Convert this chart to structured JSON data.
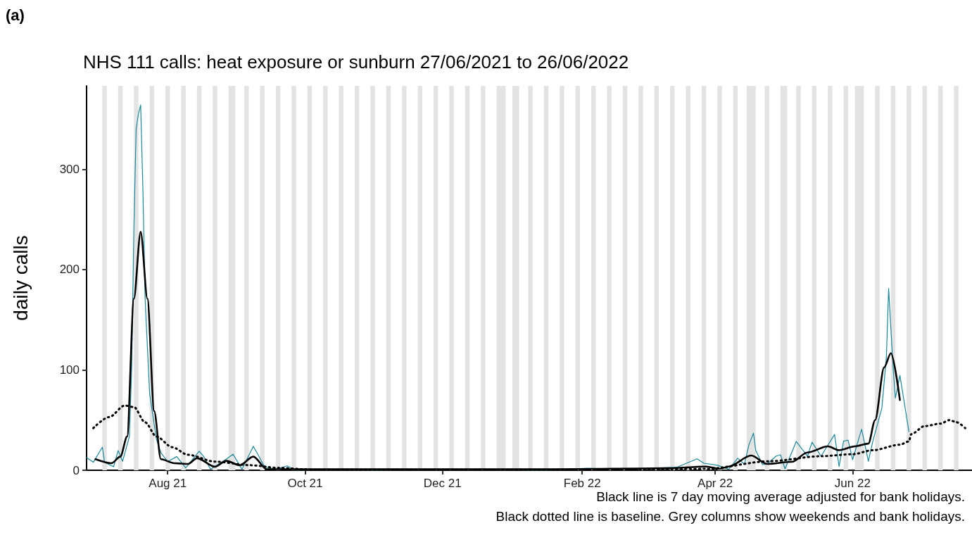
{
  "chart_data": {
    "type": "line",
    "title": "NHS 111 calls: heat exposure or sunburn 27/06/2021 to 26/06/2022",
    "ylabel": "daily calls",
    "annotations": [
      "(a)",
      "Black line is 7 day moving average adjusted for bank holidays.",
      "Black dotted line is baseline. Grey columns show weekends and bank holidays."
    ],
    "xlim": [
      "2021-06-26",
      "2022-07-24"
    ],
    "xticks": [
      {
        "value": "2021-08-01",
        "label": "Aug 21"
      },
      {
        "value": "2021-10-01",
        "label": "Oct 21"
      },
      {
        "value": "2021-12-01",
        "label": "Dec 21"
      },
      {
        "value": "2022-02-01",
        "label": "Feb 22"
      },
      {
        "value": "2022-04-01",
        "label": "Apr 22"
      },
      {
        "value": "2022-06-01",
        "label": "Jun 22"
      }
    ],
    "ylim": [
      0,
      383
    ],
    "yticks": [
      0,
      100,
      200,
      300
    ],
    "grid": false,
    "marker": "none",
    "series": [
      {
        "color": "#19889e",
        "line_style": "solid",
        "x": [
          "2021-06-26",
          "2021-06-29",
          "2021-07-03",
          "2021-07-04",
          "2021-07-08",
          "2021-07-10",
          "2021-07-12",
          "2021-07-15",
          "2021-07-16",
          "2021-07-17",
          "2021-07-18",
          "2021-07-19",
          "2021-07-20",
          "2021-07-21",
          "2021-07-22",
          "2021-07-24",
          "2021-07-27",
          "2021-07-29",
          "2021-08-01",
          "2021-08-05",
          "2021-08-09",
          "2021-08-15",
          "2021-08-17",
          "2021-08-20",
          "2021-08-27",
          "2021-08-30",
          "2021-09-03",
          "2021-09-08",
          "2021-09-10",
          "2021-09-13",
          "2021-09-18",
          "2021-09-23",
          "2021-09-27",
          "2021-10-10",
          "2021-11-01",
          "2021-11-20",
          "2021-12-10",
          "2021-12-25",
          "2022-01-15",
          "2022-02-03",
          "2022-02-20",
          "2022-03-05",
          "2022-03-15",
          "2022-03-24",
          "2022-03-27",
          "2022-04-02",
          "2022-04-07",
          "2022-04-11",
          "2022-04-14",
          "2022-04-16",
          "2022-04-18",
          "2022-04-19",
          "2022-04-22",
          "2022-04-24",
          "2022-04-28",
          "2022-04-30",
          "2022-05-02",
          "2022-05-07",
          "2022-05-12",
          "2022-05-14",
          "2022-05-18",
          "2022-05-24",
          "2022-05-26",
          "2022-05-28",
          "2022-05-30",
          "2022-06-01",
          "2022-06-05",
          "2022-06-08",
          "2022-06-10",
          "2022-06-14",
          "2022-06-16",
          "2022-06-17",
          "2022-06-19",
          "2022-06-20",
          "2022-06-22",
          "2022-06-26"
        ],
        "values": [
          12.6,
          8,
          23,
          8,
          3.5,
          19.6,
          9,
          33.6,
          100,
          240,
          340,
          355,
          364,
          280,
          170,
          76,
          31,
          17.5,
          8.6,
          13.6,
          2.4,
          19,
          13.6,
          1,
          11,
          16,
          1,
          23.8,
          16,
          3.5,
          1,
          4.4,
          0,
          1,
          0,
          1,
          1,
          1,
          0,
          2,
          1,
          2,
          3,
          11.4,
          7,
          5,
          1,
          12,
          6,
          25.5,
          37,
          20,
          5.6,
          6,
          14,
          15.4,
          1.4,
          28.7,
          14,
          28,
          14,
          35.7,
          3.7,
          29,
          30,
          10.5,
          41,
          9,
          29,
          62,
          113,
          181,
          101.6,
          72,
          94.6,
          38.5
        ]
      },
      {
        "color": "#000000",
        "line_style": "solid",
        "x": [
          "2021-06-30",
          "2021-07-07",
          "2021-07-11",
          "2021-07-14",
          "2021-07-17",
          "2021-07-20",
          "2021-07-23",
          "2021-07-26",
          "2021-07-29",
          "2021-08-04",
          "2021-08-10",
          "2021-08-14",
          "2021-08-22",
          "2021-08-27",
          "2021-09-02",
          "2021-09-08",
          "2021-09-14",
          "2021-09-25",
          "2021-10-20",
          "2021-11-20",
          "2021-12-20",
          "2022-01-20",
          "2022-02-15",
          "2022-03-10",
          "2022-03-28",
          "2022-04-03",
          "2022-04-07",
          "2022-04-17",
          "2022-04-24",
          "2022-05-05",
          "2022-05-12",
          "2022-05-21",
          "2022-05-26",
          "2022-06-02",
          "2022-06-08",
          "2022-06-11",
          "2022-06-15",
          "2022-06-18",
          "2022-06-22"
        ],
        "values": [
          11,
          7,
          13.6,
          33.6,
          171,
          237.6,
          171,
          59,
          11,
          7,
          6.3,
          12,
          3.5,
          9.4,
          5,
          13.6,
          1,
          1,
          1,
          1,
          1,
          1,
          1.5,
          2,
          3.7,
          1.4,
          3.7,
          14.7,
          6.3,
          8.4,
          17.7,
          23.8,
          20,
          23.8,
          26.6,
          50,
          102.5,
          116.6,
          70
        ]
      },
      {
        "color": "#000000",
        "line_style": "dotted",
        "x": [
          "2021-06-29",
          "2021-07-06",
          "2021-07-13",
          "2021-07-17",
          "2021-07-22",
          "2021-07-27",
          "2021-08-03",
          "2021-08-10",
          "2021-08-22",
          "2021-09-07",
          "2021-09-19",
          "2021-10-05",
          "2021-11-01",
          "2021-12-01",
          "2022-01-01",
          "2022-02-01",
          "2022-03-01",
          "2022-03-28",
          "2022-04-25",
          "2022-05-18",
          "2022-06-01",
          "2022-06-10",
          "2022-06-22",
          "2022-06-26",
          "2022-06-27",
          "2022-07-03",
          "2022-07-10",
          "2022-07-14",
          "2022-07-17",
          "2022-07-21"
        ],
        "values": [
          42,
          53,
          64.5,
          63,
          47.7,
          33.6,
          23,
          15.4,
          8.6,
          5,
          2.4,
          0.5,
          0.5,
          0.5,
          0.5,
          0.5,
          0.5,
          1.4,
          9,
          14,
          16,
          20,
          25.5,
          28.7,
          36,
          44,
          46.5,
          50,
          48,
          42
        ]
      }
    ],
    "bands": [
      {
        "axis": "x",
        "from": "2021-07-03",
        "to": "2021-07-05",
        "color": "#e3e3e3"
      },
      {
        "axis": "x",
        "from": "2021-07-10",
        "to": "2021-07-12",
        "color": "#e3e3e3"
      },
      {
        "axis": "x",
        "from": "2021-07-17",
        "to": "2021-07-19",
        "color": "#e3e3e3"
      },
      {
        "axis": "x",
        "from": "2021-07-24",
        "to": "2021-07-26",
        "color": "#e3e3e3"
      },
      {
        "axis": "x",
        "from": "2021-07-31",
        "to": "2021-08-02",
        "color": "#e3e3e3"
      },
      {
        "axis": "x",
        "from": "2021-08-07",
        "to": "2021-08-09",
        "color": "#e3e3e3"
      },
      {
        "axis": "x",
        "from": "2021-08-14",
        "to": "2021-08-16",
        "color": "#e3e3e3"
      },
      {
        "axis": "x",
        "from": "2021-08-21",
        "to": "2021-08-23",
        "color": "#e3e3e3"
      },
      {
        "axis": "x",
        "from": "2021-08-28",
        "to": "2021-08-31",
        "color": "#e3e3e3"
      },
      {
        "axis": "x",
        "from": "2021-09-04",
        "to": "2021-09-06",
        "color": "#e3e3e3"
      },
      {
        "axis": "x",
        "from": "2021-09-11",
        "to": "2021-09-13",
        "color": "#e3e3e3"
      },
      {
        "axis": "x",
        "from": "2021-09-18",
        "to": "2021-09-20",
        "color": "#e3e3e3"
      },
      {
        "axis": "x",
        "from": "2021-09-25",
        "to": "2021-09-27",
        "color": "#e3e3e3"
      },
      {
        "axis": "x",
        "from": "2021-10-02",
        "to": "2021-10-04",
        "color": "#e3e3e3"
      },
      {
        "axis": "x",
        "from": "2021-10-09",
        "to": "2021-10-11",
        "color": "#e3e3e3"
      },
      {
        "axis": "x",
        "from": "2021-10-16",
        "to": "2021-10-18",
        "color": "#e3e3e3"
      },
      {
        "axis": "x",
        "from": "2021-10-23",
        "to": "2021-10-25",
        "color": "#e3e3e3"
      },
      {
        "axis": "x",
        "from": "2021-10-30",
        "to": "2021-11-01",
        "color": "#e3e3e3"
      },
      {
        "axis": "x",
        "from": "2021-11-06",
        "to": "2021-11-08",
        "color": "#e3e3e3"
      },
      {
        "axis": "x",
        "from": "2021-11-13",
        "to": "2021-11-15",
        "color": "#e3e3e3"
      },
      {
        "axis": "x",
        "from": "2021-11-20",
        "to": "2021-11-22",
        "color": "#e3e3e3"
      },
      {
        "axis": "x",
        "from": "2021-11-27",
        "to": "2021-11-29",
        "color": "#e3e3e3"
      },
      {
        "axis": "x",
        "from": "2021-12-04",
        "to": "2021-12-06",
        "color": "#e3e3e3"
      },
      {
        "axis": "x",
        "from": "2021-12-11",
        "to": "2021-12-13",
        "color": "#e3e3e3"
      },
      {
        "axis": "x",
        "from": "2021-12-18",
        "to": "2021-12-20",
        "color": "#e3e3e3"
      },
      {
        "axis": "x",
        "from": "2021-12-25",
        "to": "2021-12-29",
        "color": "#e3e3e3"
      },
      {
        "axis": "x",
        "from": "2022-01-01",
        "to": "2022-01-04",
        "color": "#e3e3e3"
      },
      {
        "axis": "x",
        "from": "2022-01-08",
        "to": "2022-01-10",
        "color": "#e3e3e3"
      },
      {
        "axis": "x",
        "from": "2022-01-15",
        "to": "2022-01-17",
        "color": "#e3e3e3"
      },
      {
        "axis": "x",
        "from": "2022-01-22",
        "to": "2022-01-24",
        "color": "#e3e3e3"
      },
      {
        "axis": "x",
        "from": "2022-01-29",
        "to": "2022-01-31",
        "color": "#e3e3e3"
      },
      {
        "axis": "x",
        "from": "2022-02-05",
        "to": "2022-02-07",
        "color": "#e3e3e3"
      },
      {
        "axis": "x",
        "from": "2022-02-12",
        "to": "2022-02-14",
        "color": "#e3e3e3"
      },
      {
        "axis": "x",
        "from": "2022-02-19",
        "to": "2022-02-21",
        "color": "#e3e3e3"
      },
      {
        "axis": "x",
        "from": "2022-02-26",
        "to": "2022-02-28",
        "color": "#e3e3e3"
      },
      {
        "axis": "x",
        "from": "2022-03-05",
        "to": "2022-03-07",
        "color": "#e3e3e3"
      },
      {
        "axis": "x",
        "from": "2022-03-12",
        "to": "2022-03-14",
        "color": "#e3e3e3"
      },
      {
        "axis": "x",
        "from": "2022-03-19",
        "to": "2022-03-21",
        "color": "#e3e3e3"
      },
      {
        "axis": "x",
        "from": "2022-03-26",
        "to": "2022-03-28",
        "color": "#e3e3e3"
      },
      {
        "axis": "x",
        "from": "2022-04-02",
        "to": "2022-04-04",
        "color": "#e3e3e3"
      },
      {
        "axis": "x",
        "from": "2022-04-09",
        "to": "2022-04-11",
        "color": "#e3e3e3"
      },
      {
        "axis": "x",
        "from": "2022-04-15",
        "to": "2022-04-19",
        "color": "#e3e3e3"
      },
      {
        "axis": "x",
        "from": "2022-04-23",
        "to": "2022-04-25",
        "color": "#e3e3e3"
      },
      {
        "axis": "x",
        "from": "2022-04-30",
        "to": "2022-05-03",
        "color": "#e3e3e3"
      },
      {
        "axis": "x",
        "from": "2022-05-07",
        "to": "2022-05-09",
        "color": "#e3e3e3"
      },
      {
        "axis": "x",
        "from": "2022-05-14",
        "to": "2022-05-16",
        "color": "#e3e3e3"
      },
      {
        "axis": "x",
        "from": "2022-05-21",
        "to": "2022-05-23",
        "color": "#e3e3e3"
      },
      {
        "axis": "x",
        "from": "2022-05-28",
        "to": "2022-05-30",
        "color": "#e3e3e3"
      },
      {
        "axis": "x",
        "from": "2022-06-02",
        "to": "2022-06-06",
        "color": "#e3e3e3"
      },
      {
        "axis": "x",
        "from": "2022-06-11",
        "to": "2022-06-13",
        "color": "#e3e3e3"
      },
      {
        "axis": "x",
        "from": "2022-06-18",
        "to": "2022-06-20",
        "color": "#e3e3e3"
      },
      {
        "axis": "x",
        "from": "2022-06-25",
        "to": "2022-06-27",
        "color": "#e3e3e3"
      },
      {
        "axis": "x",
        "from": "2022-07-02",
        "to": "2022-07-04",
        "color": "#e3e3e3"
      },
      {
        "axis": "x",
        "from": "2022-07-09",
        "to": "2022-07-11",
        "color": "#e3e3e3"
      },
      {
        "axis": "x",
        "from": "2022-07-16",
        "to": "2022-07-18",
        "color": "#e3e3e3"
      }
    ]
  }
}
